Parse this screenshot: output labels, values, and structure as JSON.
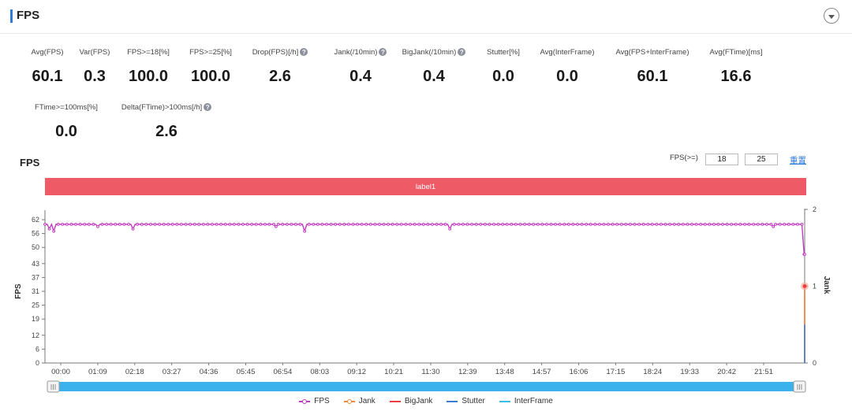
{
  "section": {
    "title": "FPS"
  },
  "stats": [
    {
      "label": "Avg(FPS)",
      "value": "60.1",
      "help": false
    },
    {
      "label": "Var(FPS)",
      "value": "0.3",
      "help": false
    },
    {
      "label": "FPS>=18[%]",
      "value": "100.0",
      "help": false
    },
    {
      "label": "FPS>=25[%]",
      "value": "100.0",
      "help": false
    },
    {
      "label": "Drop(FPS)[/h]",
      "value": "2.6",
      "help": true
    },
    {
      "label": "Jank(/10min)",
      "value": "0.4",
      "help": true
    },
    {
      "label": "BigJank(/10min)",
      "value": "0.4",
      "help": true
    },
    {
      "label": "Stutter[%]",
      "value": "0.0",
      "help": false
    },
    {
      "label": "Avg(InterFrame)",
      "value": "0.0",
      "help": false
    },
    {
      "label": "Avg(FPS+InterFrame)",
      "value": "60.1",
      "help": false
    },
    {
      "label": "Avg(FTime)[ms]",
      "value": "16.6",
      "help": false
    },
    {
      "label": "FTime>=100ms[%]",
      "value": "0.0",
      "help": false
    },
    {
      "label": "Delta(FTime)>100ms[/h]",
      "value": "2.6",
      "help": true
    }
  ],
  "chart_section": {
    "title": "FPS",
    "filter_label": "FPS(>=)",
    "threshold_low": "18",
    "threshold_high": "25",
    "reset_label": "重置",
    "band_label": "label1"
  },
  "chart_data": {
    "type": "line",
    "x_ticks": [
      "00:00",
      "01:09",
      "02:18",
      "03:27",
      "04:36",
      "05:45",
      "06:54",
      "08:03",
      "09:12",
      "10:21",
      "11:30",
      "12:39",
      "13:48",
      "14:57",
      "16:06",
      "17:15",
      "18:24",
      "19:33",
      "20:42",
      "21:51"
    ],
    "y_left": {
      "label": "FPS",
      "ticks": [
        0,
        6,
        12,
        19,
        25,
        31,
        37,
        43,
        50,
        56,
        62
      ],
      "range": [
        0,
        62
      ]
    },
    "y_right": {
      "label": "Jank",
      "ticks": [
        0,
        1,
        2
      ],
      "range": [
        0,
        2
      ]
    },
    "x_range_seconds": [
      0,
      1381
    ],
    "series": [
      {
        "name": "FPS",
        "color": "#c23cc2",
        "typical_value": 60,
        "dips": [
          [
            8,
            58
          ],
          [
            17,
            57
          ],
          [
            95,
            59
          ],
          [
            160,
            58
          ],
          [
            222,
            59
          ],
          [
            419,
            59
          ],
          [
            472,
            57
          ],
          [
            474,
            56
          ],
          [
            735,
            58
          ],
          [
            1323,
            59
          ],
          [
            1375,
            60
          ],
          [
            1381,
            47
          ]
        ]
      },
      {
        "name": "Jank",
        "color": "#f08a3c",
        "points": [
          [
            1381,
            0
          ],
          [
            1381,
            1
          ]
        ]
      },
      {
        "name": "BigJank",
        "color": "#e84040",
        "points": [
          [
            1381,
            0
          ],
          [
            1381,
            1
          ]
        ]
      },
      {
        "name": "Stutter",
        "color": "#3a7bd5",
        "points": []
      },
      {
        "name": "InterFrame",
        "color": "#3cbce6",
        "points": []
      }
    ],
    "legend_position": "bottom",
    "grid": false
  }
}
